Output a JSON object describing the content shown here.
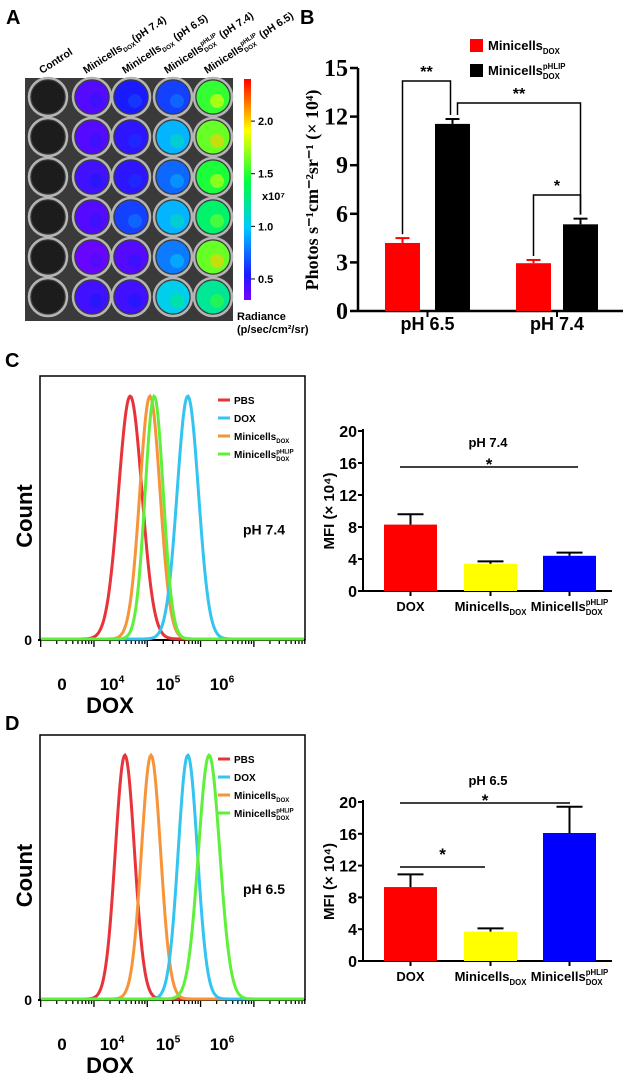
{
  "panel_labels": [
    "A",
    "B",
    "C",
    "D"
  ],
  "chart_data": [
    {
      "panel": "A",
      "type": "heatmap",
      "columns": [
        {
          "base": "Control"
        },
        {
          "base": "Minicells",
          "sub": "DOX",
          "after": "(pH 7.4)"
        },
        {
          "base": "Minicells",
          "sub": "DOX",
          "after": " (pH 6.5)"
        },
        {
          "base": "Minicells",
          "sub": "DOX",
          "sup": "pHLIP",
          "after": " (pH 7.4)"
        },
        {
          "base": "Minicells",
          "sub": "DOX",
          "sup": "pHLIP",
          "after": " (pH 6.5)"
        }
      ],
      "values_x1e7": [
        [
          null,
          0.35,
          0.5,
          0.6,
          1.5
        ],
        [
          null,
          0.35,
          0.45,
          0.9,
          1.6
        ],
        [
          null,
          0.4,
          0.45,
          0.7,
          1.45
        ],
        [
          null,
          0.35,
          0.6,
          0.9,
          1.3
        ],
        [
          null,
          0.3,
          0.35,
          0.75,
          1.6
        ],
        [
          null,
          0.4,
          0.4,
          1.0,
          1.2
        ]
      ],
      "colorbar": {
        "range": [
          0.3,
          2.4
        ],
        "ticks": [
          "0.5",
          "1.0",
          "1.5",
          "2.0"
        ],
        "multiplier": "x10⁷",
        "label_line1": "Radiance",
        "label_line2": "(p/sec/cm²/sr)",
        "colors": [
          "#7a00ff",
          "#1a1aff",
          "#00c8ff",
          "#00ff40",
          "#ffff00",
          "#ff0000"
        ]
      }
    },
    {
      "panel": "B",
      "type": "bar",
      "categories": [
        "pH 6.5",
        "pH 7.4"
      ],
      "series": [
        {
          "label": {
            "base": "Minicells",
            "sub": "DOX"
          },
          "values": [
            4.2,
            2.95
          ],
          "errors": [
            0.3,
            0.2
          ],
          "color": "#ff0000"
        },
        {
          "label": {
            "base": "Minicells",
            "sub": "DOX",
            "sup": "pHLIP"
          },
          "values": [
            11.55,
            5.35
          ],
          "errors": [
            0.3,
            0.35
          ],
          "color": "#000000"
        }
      ],
      "ylabel": "Photos s⁻¹cm⁻²sr⁻¹ (× 10⁴)",
      "ylim": [
        0,
        15
      ],
      "yticks": [
        "0",
        "3",
        "6",
        "9",
        "12",
        "15"
      ],
      "legend": "top-right",
      "significance": [
        {
          "label": "**",
          "from": [
            0,
            0
          ],
          "to": [
            0,
            1
          ]
        },
        {
          "label": "**",
          "from": [
            0,
            1
          ],
          "to": [
            1,
            1
          ]
        },
        {
          "label": "*",
          "from": [
            1,
            0
          ],
          "to": [
            1,
            1
          ]
        }
      ]
    },
    {
      "panel": "C-histogram",
      "type": "line",
      "xlabel": "DOX",
      "ylabel": "Count",
      "ytick": "0",
      "xticks": [
        {
          "base": "0"
        },
        {
          "base": "10",
          "sup": "4"
        },
        {
          "base": "10",
          "sup": "5"
        },
        {
          "base": "10",
          "sup": "6"
        }
      ],
      "annotation": "pH 7.4",
      "legend": "top-right",
      "series": [
        {
          "label": {
            "base": "PBS"
          },
          "peak_log10": 4.28,
          "width_log10": 0.22,
          "color": "#e8333a"
        },
        {
          "label": {
            "base": "DOX"
          },
          "peak_log10": 5.36,
          "width_log10": 0.2,
          "color": "#33c4f0"
        },
        {
          "label": {
            "base": "Minicells",
            "sub": "DOX"
          },
          "peak_log10": 4.65,
          "width_log10": 0.19,
          "color": "#f7943a"
        },
        {
          "label": {
            "base": "Minicells",
            "sub": "DOX",
            "sup": "pHLIP"
          },
          "peak_log10": 4.73,
          "width_log10": 0.17,
          "color": "#5ef03a"
        }
      ]
    },
    {
      "panel": "C-bar",
      "type": "bar",
      "title": "pH 7.4",
      "categories": [
        {
          "base": "DOX"
        },
        {
          "base": "Minicells",
          "sub": "DOX"
        },
        {
          "base": "Minicells",
          "sub": "DOX",
          "sup": "pHLIP"
        }
      ],
      "values": [
        8.3,
        3.4,
        4.4
      ],
      "errors": [
        1.3,
        0.3,
        0.4
      ],
      "colors": [
        "#ff0000",
        "#ffff00",
        "#0000ff"
      ],
      "ylabel": "MFI (× 10⁴)",
      "ylim": [
        0,
        20
      ],
      "yticks": [
        "0",
        "4",
        "8",
        "12",
        "16",
        "20"
      ],
      "significance": [
        {
          "label": "*",
          "from": 0,
          "to": 2
        }
      ]
    },
    {
      "panel": "D-histogram",
      "type": "line",
      "xlabel": "DOX",
      "ylabel": "Count",
      "ytick": "0",
      "xticks": [
        {
          "base": "0"
        },
        {
          "base": "10",
          "sup": "4"
        },
        {
          "base": "10",
          "sup": "5"
        },
        {
          "base": "10",
          "sup": "6"
        }
      ],
      "annotation": "pH 6.5",
      "legend": "top-right",
      "series": [
        {
          "label": {
            "base": "PBS"
          },
          "peak_log10": 4.18,
          "width_log10": 0.18,
          "color": "#e8333a"
        },
        {
          "label": {
            "base": "DOX"
          },
          "peak_log10": 5.36,
          "width_log10": 0.18,
          "color": "#33c4f0"
        },
        {
          "label": {
            "base": "Minicells",
            "sub": "DOX"
          },
          "peak_log10": 4.67,
          "width_log10": 0.18,
          "color": "#f7943a"
        },
        {
          "label": {
            "base": "Minicells",
            "sub": "DOX",
            "sup": "pHLIP"
          },
          "peak_log10": 5.76,
          "width_log10": 0.2,
          "color": "#5ef03a"
        }
      ]
    },
    {
      "panel": "D-bar",
      "type": "bar",
      "title": "pH 6.5",
      "categories": [
        {
          "base": "DOX"
        },
        {
          "base": "Minicells",
          "sub": "DOX"
        },
        {
          "base": "Minicells",
          "sub": "DOX",
          "sup": "pHLIP"
        }
      ],
      "values": [
        9.3,
        3.7,
        16.1
      ],
      "errors": [
        1.6,
        0.4,
        3.3
      ],
      "colors": [
        "#ff0000",
        "#ffff00",
        "#0000ff"
      ],
      "ylabel": "MFI (× 10⁴)",
      "ylim": [
        0,
        20
      ],
      "yticks": [
        "0",
        "4",
        "8",
        "12",
        "16",
        "20"
      ],
      "significance": [
        {
          "label": "*",
          "from": 0,
          "to": 2
        },
        {
          "label": "*",
          "from": 0,
          "to": 1
        }
      ]
    }
  ]
}
